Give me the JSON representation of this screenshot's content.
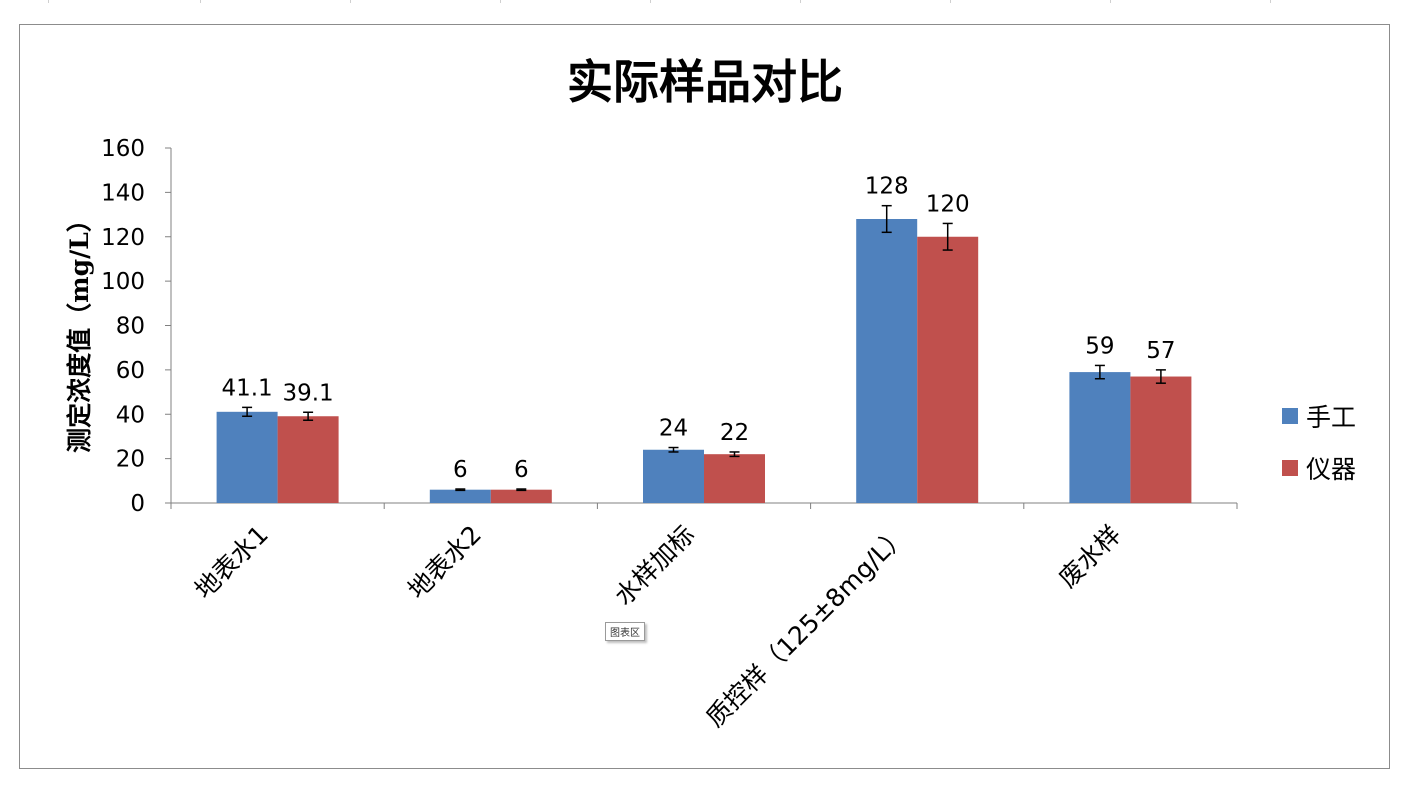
{
  "chart_data": {
    "type": "bar",
    "title": "实际样品对比",
    "xlabel": "",
    "ylabel": "测定浓度值（mg/L）",
    "ylim": [
      0,
      160
    ],
    "yticks": [
      0,
      20,
      40,
      60,
      80,
      100,
      120,
      140,
      160
    ],
    "categories": [
      "地表水1",
      "地表水2",
      "水样加标",
      "质控样（125±8mg/L）",
      "废水样"
    ],
    "series": [
      {
        "name": "手工",
        "color": "#4f81bd",
        "values": [
          41.1,
          6,
          24,
          128,
          59
        ],
        "labels": [
          "41.1",
          "6",
          "24",
          "128",
          "59"
        ],
        "error": [
          2,
          0.3,
          1,
          6,
          3
        ]
      },
      {
        "name": "仪器",
        "color": "#c0504d",
        "values": [
          39.1,
          6,
          22,
          120,
          57
        ],
        "labels": [
          "39.1",
          "6",
          "22",
          "120",
          "57"
        ],
        "error": [
          1.8,
          0.3,
          1,
          6,
          3
        ]
      }
    ],
    "grid": false,
    "legend_position": "right",
    "error_bars": true
  },
  "tooltip": {
    "text": "图表区"
  }
}
